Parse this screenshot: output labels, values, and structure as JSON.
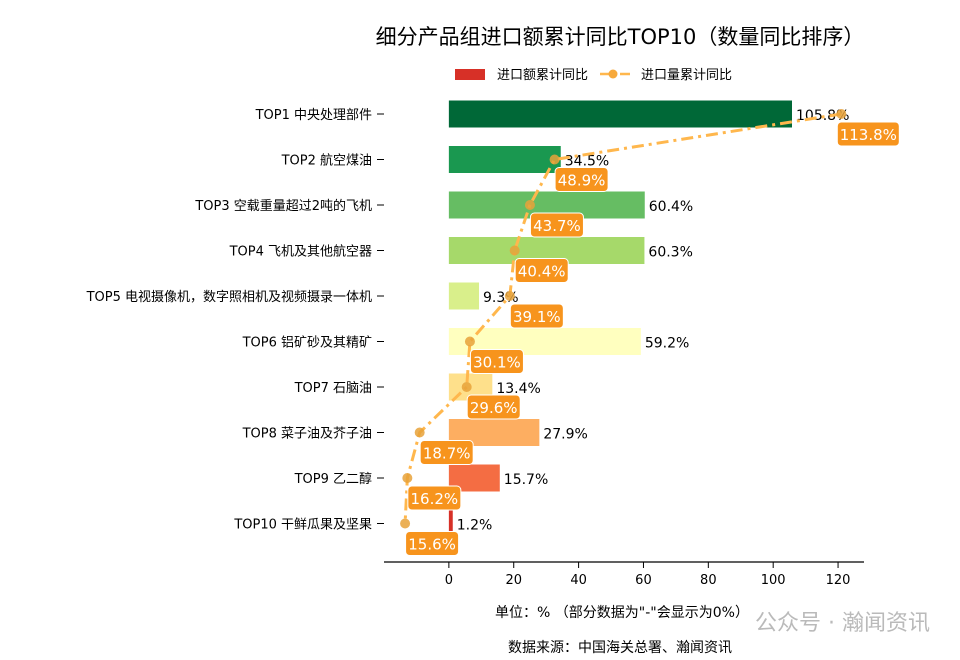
{
  "chart_data": {
    "type": "bar",
    "orientation": "horizontal",
    "title": "细分产品组进口额累计同比TOP10（数量同比排序）",
    "categories": [
      "TOP1 中央处理部件",
      "TOP2 航空煤油",
      "TOP3 空载重量超过2吨的飞机",
      "TOP4 飞机及其他航空器",
      "TOP5 电视摄像机，数字照相机及视频摄录一体机",
      "TOP6 铝矿砂及其精矿",
      "TOP7 石脑油",
      "TOP8 菜子油及芥子油",
      "TOP9 乙二醇",
      "TOP10 干鲜瓜果及坚果"
    ],
    "series": [
      {
        "name": "进口额累计同比",
        "type": "bar",
        "values": [
          105.8,
          34.5,
          60.4,
          60.3,
          9.3,
          59.2,
          13.4,
          27.9,
          15.7,
          1.2
        ],
        "labels": [
          "105.8%",
          "34.5%",
          "60.4%",
          "60.3%",
          "9.3%",
          "59.2%",
          "13.4%",
          "27.9%",
          "15.7%",
          "1.2%"
        ],
        "colors": [
          "#006837",
          "#1a9850",
          "#66bd63",
          "#a6d96a",
          "#d9ef8b",
          "#ffffbf",
          "#fee08b",
          "#fdae61",
          "#f46d43",
          "#d73027"
        ]
      },
      {
        "name": "进口量累计同比",
        "type": "line",
        "values": [
          113.8,
          48.9,
          43.7,
          40.4,
          39.1,
          30.1,
          29.6,
          18.7,
          16.2,
          15.6
        ],
        "labels": [
          "113.8%",
          "48.9%",
          "43.7%",
          "40.4%",
          "39.1%",
          "30.1%",
          "29.6%",
          "18.7%",
          "16.2%",
          "15.6%"
        ],
        "marker_x": [
          121,
          32.6,
          25,
          20.3,
          18.8,
          6.5,
          5.5,
          -9,
          -12.8,
          -13.5
        ],
        "color": "#ffb74d",
        "label_color": "#f7941d"
      }
    ],
    "xticks": [
      0,
      20,
      40,
      60,
      80,
      100,
      120
    ],
    "xlim": [
      -20,
      128
    ],
    "xlabel": "单位：%  （部分数据为\"-\"会显示为0%）",
    "source": "数据来源：中国海关总署、瀚闻资讯",
    "legend_placement": "top",
    "grid": false
  },
  "watermark": "公众号 · 瀚闻资讯"
}
